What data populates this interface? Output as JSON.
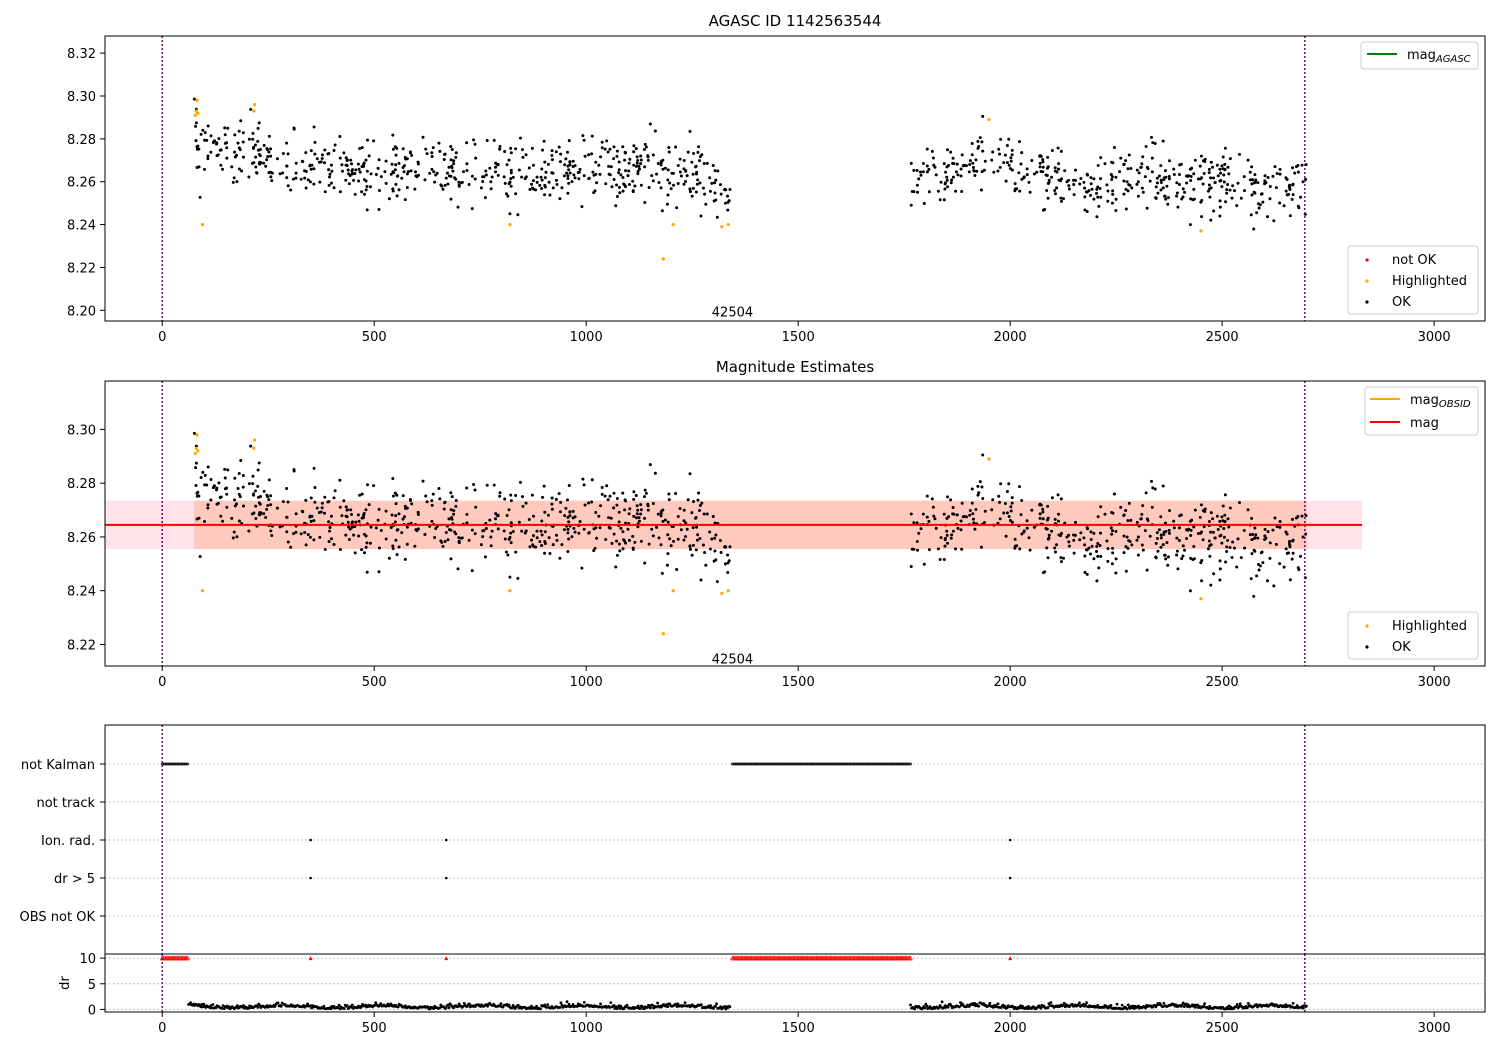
{
  "chart_data": [
    {
      "type": "scatter",
      "title": "AGASC ID 1142563544",
      "xlim": [
        -135,
        3120
      ],
      "ylim": [
        8.195,
        8.328
      ],
      "xticks": [
        0,
        500,
        1000,
        1500,
        2000,
        2500,
        3000
      ],
      "yticks": [
        8.2,
        8.22,
        8.24,
        8.26,
        8.28,
        8.3,
        8.32
      ],
      "ytick_labels": [
        "8.20",
        "8.22",
        "8.24",
        "8.26",
        "8.28",
        "8.30",
        "8.32"
      ],
      "vlines": [
        0,
        2695
      ],
      "annotation": {
        "text": "42504",
        "x": 1345,
        "y": 8.199
      },
      "legend_top": [
        "mag"
      ],
      "legend_top_sub": "AGASC",
      "legend_bottom": [
        "not OK",
        "Highlighted",
        "OK"
      ],
      "segments": [
        {
          "x0": 75,
          "x1": 1340,
          "base": [
            [
              75,
              8.279
            ],
            [
              110,
              8.276
            ],
            [
              200,
              8.272
            ],
            [
              300,
              8.268
            ],
            [
              450,
              8.264
            ],
            [
              600,
              8.265
            ],
            [
              750,
              8.266
            ],
            [
              900,
              8.265
            ],
            [
              1050,
              8.266
            ],
            [
              1150,
              8.267
            ],
            [
              1230,
              8.263
            ],
            [
              1300,
              8.262
            ],
            [
              1340,
              8.252
            ]
          ],
          "n": 620
        },
        {
          "x0": 1765,
          "x1": 2700,
          "base": [
            [
              1765,
              8.262
            ],
            [
              1900,
              8.266
            ],
            [
              1980,
              8.27
            ],
            [
              2050,
              8.262
            ],
            [
              2150,
              8.258
            ],
            [
              2250,
              8.258
            ],
            [
              2300,
              8.263
            ],
            [
              2400,
              8.261
            ],
            [
              2500,
              8.259
            ],
            [
              2600,
              8.256
            ],
            [
              2700,
              8.26
            ]
          ],
          "n": 440
        }
      ],
      "scatter_sd": 0.0072,
      "highlighted": [
        [
          78,
          8.291
        ],
        [
          80,
          8.293
        ],
        [
          82,
          8.298
        ],
        [
          84,
          8.292
        ],
        [
          95,
          8.24
        ],
        [
          216,
          8.293
        ],
        [
          218,
          8.296
        ],
        [
          820,
          8.24
        ],
        [
          1182,
          8.224
        ],
        [
          1205,
          8.24
        ],
        [
          1320,
          8.239
        ],
        [
          1335,
          8.24
        ],
        [
          1950,
          8.289
        ],
        [
          2450,
          8.237
        ]
      ]
    },
    {
      "type": "scatter",
      "title": "Magnitude Estimates",
      "xlim": [
        -135,
        3120
      ],
      "ylim": [
        8.212,
        8.318
      ],
      "xticks": [
        0,
        500,
        1000,
        1500,
        2000,
        2500,
        3000
      ],
      "yticks": [
        8.22,
        8.24,
        8.26,
        8.28,
        8.3
      ],
      "ytick_labels": [
        "8.22",
        "8.24",
        "8.26",
        "8.28",
        "8.30"
      ],
      "vlines": [
        0,
        2695
      ],
      "annotation": {
        "text": "42504",
        "x": 1345,
        "y": 8.2145
      },
      "mag_line": {
        "value": 8.2645,
        "x0": -135,
        "x1": 2830
      },
      "mag_band": {
        "lo": 8.2555,
        "hi": 8.2735,
        "x0": -135,
        "x1": 2830
      },
      "obsid_band": {
        "lo": 8.2555,
        "hi": 8.2735,
        "x0": 75,
        "x1": 2700
      },
      "legend_top": [
        "mag",
        "mag"
      ],
      "legend_top_sub": "OBSID",
      "legend_bottom": [
        "Highlighted",
        "OK"
      ],
      "colors": {
        "mag": "#ff0000",
        "mag_obsid": "#ffa500",
        "highlighted": "#ffa500",
        "ok": "#000000",
        "not_ok": "#ff0000",
        "agasc": "#008000",
        "vline": "#800080"
      }
    },
    {
      "type": "scatter",
      "xlim": [
        -135,
        3120
      ],
      "flag_labels": [
        "not Kalman",
        "not track",
        "Ion. rad.",
        "dr > 5",
        "OBS not OK"
      ],
      "flag_points": {
        "not Kalman": [
          [
            0,
            62
          ],
          [
            1345,
            1765
          ]
        ],
        "not track": [],
        "Ion. rad.": [
          [
            350,
            350
          ],
          [
            670,
            670
          ],
          [
            2000,
            2000
          ]
        ],
        "dr > 5": [
          [
            350,
            350
          ],
          [
            670,
            670
          ],
          [
            2000,
            2000
          ]
        ],
        "OBS not OK": []
      },
      "dr_ylim": [
        -0.5,
        10.8
      ],
      "dr_yticks": [
        0,
        5,
        10
      ],
      "dr_ylabel": "dr",
      "dr_flagged_value": 10,
      "dr_flagged_ranges": [
        [
          0,
          62
        ],
        [
          350,
          350
        ],
        [
          670,
          670
        ],
        [
          1345,
          1765
        ],
        [
          2000,
          2000
        ]
      ],
      "dr_ok_ranges": [
        [
          62,
          1340
        ],
        [
          1765,
          2700
        ]
      ],
      "xticks": [
        0,
        500,
        1000,
        1500,
        2000,
        2500,
        3000
      ]
    }
  ]
}
